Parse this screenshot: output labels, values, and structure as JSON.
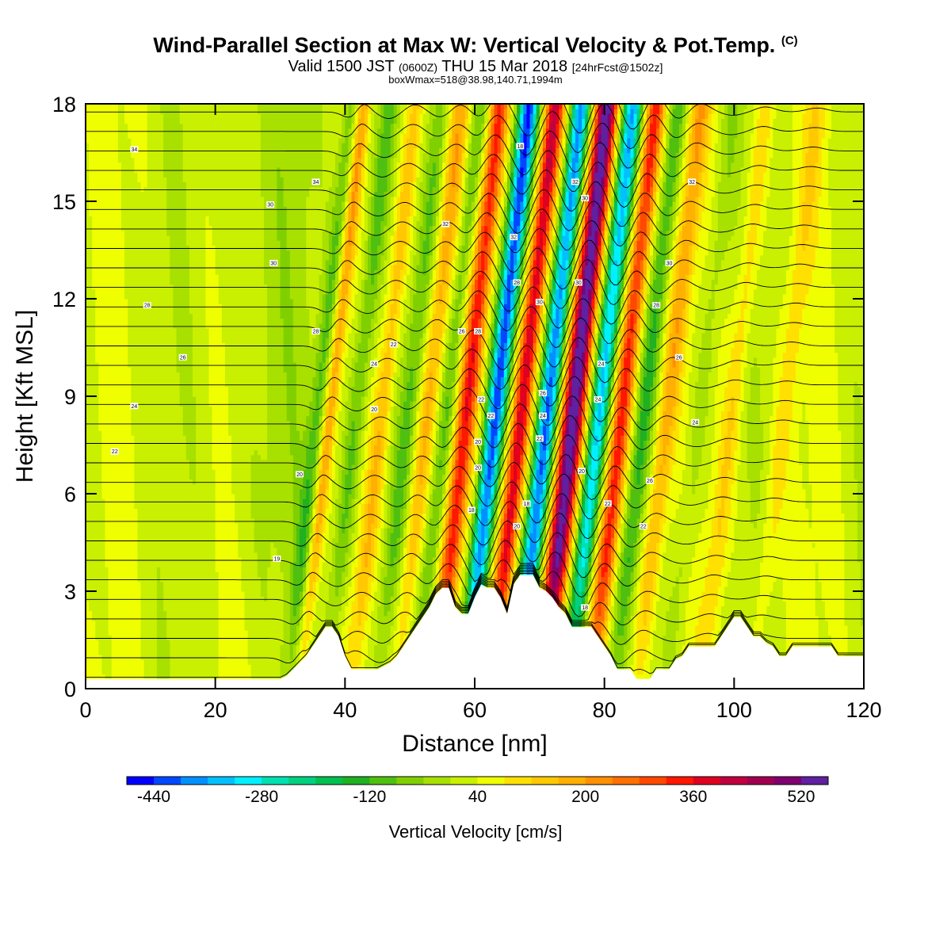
{
  "title": {
    "main": "Wind-Parallel Section at Max W: Vertical Velocity & Pot.Temp.",
    "copyright": "(C)",
    "valid_prefix": "Valid 1500 JST",
    "valid_utc": "(0600Z)",
    "valid_date": "THU 15 Mar 2018",
    "forecast": "[24hrFcst@1502z]",
    "box": "boxWmax=518@38.98,140.71,1994m"
  },
  "chart_data": {
    "type": "heatmap",
    "xlabel": "Distance [nm]",
    "ylabel": "Height [Kft MSL]",
    "xlim": [
      0,
      120
    ],
    "ylim": [
      0,
      18
    ],
    "x_ticks": [
      "0",
      "20",
      "40",
      "60",
      "80",
      "100",
      "120"
    ],
    "y_ticks": [
      "0",
      "3",
      "6",
      "9",
      "12",
      "15",
      "18"
    ],
    "colorbar": {
      "label": "Vertical Velocity [cm/s]",
      "tick_labels": [
        "-440",
        "-280",
        "-120",
        "40",
        "200",
        "360",
        "520"
      ],
      "levels": [
        -480,
        -440,
        -400,
        -360,
        -320,
        -280,
        -240,
        -200,
        -160,
        -120,
        -80,
        -40,
        0,
        40,
        80,
        120,
        160,
        200,
        240,
        280,
        320,
        360,
        400,
        440,
        480,
        520,
        560
      ],
      "colors": [
        "#0000ff",
        "#0048ff",
        "#0090ff",
        "#00c0ff",
        "#00f0ff",
        "#00e0b0",
        "#00d080",
        "#00c050",
        "#20b020",
        "#50c010",
        "#80d000",
        "#a8e000",
        "#c8f000",
        "#f0ff00",
        "#ffe000",
        "#ffc800",
        "#ffb000",
        "#ff9000",
        "#ff7000",
        "#ff4800",
        "#ff1800",
        "#e00020",
        "#c00040",
        "#a00050",
        "#800070",
        "#6020a0"
      ]
    },
    "vertical_velocity_bands": [
      {
        "x": 36,
        "w": 1.2,
        "amp": -110
      },
      {
        "x": 38,
        "w": 1.0,
        "amp": 160
      },
      {
        "x": 42,
        "w": 1.4,
        "amp": -120
      },
      {
        "x": 46,
        "w": 1.4,
        "amp": 130
      },
      {
        "x": 50,
        "w": 1.4,
        "amp": -100
      },
      {
        "x": 53,
        "w": 1.4,
        "amp": 140
      },
      {
        "x": 56,
        "w": 1.3,
        "amp": -120
      },
      {
        "x": 59,
        "w": 1.5,
        "amp": 300
      },
      {
        "x": 63.5,
        "w": 1.5,
        "amp": -440
      },
      {
        "x": 67.5,
        "w": 1.5,
        "amp": 380
      },
      {
        "x": 71.5,
        "w": 1.5,
        "amp": -420
      },
      {
        "x": 75.5,
        "w": 1.7,
        "amp": 518
      },
      {
        "x": 79.5,
        "w": 1.5,
        "amp": -360
      },
      {
        "x": 83,
        "w": 1.5,
        "amp": 320
      },
      {
        "x": 86.5,
        "w": 1.4,
        "amp": -140
      },
      {
        "x": 90,
        "w": 1.5,
        "amp": 150
      },
      {
        "x": 95,
        "w": 1.6,
        "amp": -60
      },
      {
        "x": 100,
        "w": 1.5,
        "amp": 90
      },
      {
        "x": 108,
        "w": 1.6,
        "amp": 70
      }
    ],
    "terrain": {
      "distance_nm": [
        0,
        30,
        31,
        32,
        33,
        34,
        35,
        36,
        37,
        38,
        39,
        40,
        41,
        42,
        45,
        47,
        48,
        49,
        50,
        51,
        52,
        53,
        54,
        55,
        56,
        57,
        58,
        59,
        60,
        61,
        62,
        63,
        64,
        65,
        66,
        67,
        68,
        69,
        70,
        71,
        72,
        73,
        74,
        75,
        76,
        77,
        78,
        79,
        80,
        81,
        82,
        83,
        84,
        85,
        86,
        87,
        88,
        89,
        90,
        91,
        92,
        93,
        95,
        97,
        98,
        99,
        100,
        101,
        102,
        103,
        104,
        105,
        106,
        107,
        108,
        109,
        110,
        115,
        116,
        117,
        118,
        119,
        120
      ],
      "height_kft": [
        0.3,
        0.3,
        0.4,
        0.6,
        0.8,
        1.0,
        1.3,
        1.6,
        1.9,
        1.9,
        1.6,
        1.0,
        0.6,
        0.6,
        0.6,
        0.8,
        1.0,
        1.3,
        1.6,
        1.9,
        2.2,
        2.5,
        2.9,
        3.1,
        3.1,
        2.5,
        2.3,
        2.3,
        2.8,
        3.2,
        3.1,
        3.1,
        2.8,
        2.3,
        3.2,
        3.5,
        3.5,
        3.5,
        3.1,
        3.0,
        2.8,
        2.5,
        2.3,
        1.9,
        1.9,
        1.9,
        1.9,
        1.6,
        1.3,
        1.0,
        0.6,
        0.6,
        0.6,
        0.3,
        0.3,
        0.3,
        0.6,
        0.6,
        0.6,
        0.9,
        1.0,
        1.3,
        1.3,
        1.3,
        1.6,
        1.9,
        2.2,
        2.2,
        1.9,
        1.6,
        1.6,
        1.4,
        1.3,
        1.0,
        1.0,
        1.3,
        1.3,
        1.3,
        1.0,
        1.0,
        1.0,
        1.0,
        1.0
      ]
    },
    "pot_temp_contours": {
      "count": 30,
      "labels": [
        {
          "text": "34",
          "x": 7.5,
          "y": 16.6
        },
        {
          "text": "34",
          "x": 35.5,
          "y": 15.6
        },
        {
          "text": "32",
          "x": 55.5,
          "y": 14.3
        },
        {
          "text": "32",
          "x": 93.5,
          "y": 15.6
        },
        {
          "text": "30",
          "x": 28.5,
          "y": 14.9
        },
        {
          "text": "30",
          "x": 29,
          "y": 13.1
        },
        {
          "text": "30",
          "x": 90,
          "y": 13.1
        },
        {
          "text": "28",
          "x": 9.5,
          "y": 11.8
        },
        {
          "text": "28",
          "x": 35.5,
          "y": 11.0
        },
        {
          "text": "28",
          "x": 88,
          "y": 11.8
        },
        {
          "text": "26",
          "x": 15,
          "y": 10.2
        },
        {
          "text": "24",
          "x": 7.5,
          "y": 8.7
        },
        {
          "text": "24",
          "x": 94,
          "y": 8.2
        },
        {
          "text": "22",
          "x": 4.5,
          "y": 7.3
        },
        {
          "text": "22",
          "x": 47.5,
          "y": 10.6
        },
        {
          "text": "20",
          "x": 33,
          "y": 6.6
        },
        {
          "text": "19",
          "x": 29.5,
          "y": 4.0
        },
        {
          "text": "26",
          "x": 91.5,
          "y": 10.2
        },
        {
          "text": "26",
          "x": 87,
          "y": 6.4
        },
        {
          "text": "22",
          "x": 86,
          "y": 5.0
        },
        {
          "text": "22",
          "x": 80.5,
          "y": 5.7
        },
        {
          "text": "20",
          "x": 76.5,
          "y": 6.7
        },
        {
          "text": "18",
          "x": 77,
          "y": 2.5
        },
        {
          "text": "24",
          "x": 79,
          "y": 8.9
        },
        {
          "text": "24",
          "x": 79.5,
          "y": 10.0
        },
        {
          "text": "30",
          "x": 77,
          "y": 15.1
        },
        {
          "text": "32",
          "x": 75.5,
          "y": 15.6
        },
        {
          "text": "30",
          "x": 76,
          "y": 12.5
        },
        {
          "text": "30",
          "x": 70,
          "y": 11.9
        },
        {
          "text": "28",
          "x": 66.5,
          "y": 12.5
        },
        {
          "text": "32",
          "x": 66,
          "y": 13.9
        },
        {
          "text": "18",
          "x": 67,
          "y": 16.7
        },
        {
          "text": "26",
          "x": 70.5,
          "y": 9.1
        },
        {
          "text": "24",
          "x": 70.5,
          "y": 8.4
        },
        {
          "text": "22",
          "x": 70,
          "y": 7.7
        },
        {
          "text": "18",
          "x": 68,
          "y": 5.7
        },
        {
          "text": "20",
          "x": 66.5,
          "y": 5.0
        },
        {
          "text": "28",
          "x": 60.5,
          "y": 11.0
        },
        {
          "text": "26",
          "x": 58,
          "y": 11.0
        },
        {
          "text": "22",
          "x": 61,
          "y": 8.9
        },
        {
          "text": "22",
          "x": 62.5,
          "y": 8.4
        },
        {
          "text": "20",
          "x": 60.5,
          "y": 7.6
        },
        {
          "text": "20",
          "x": 60.5,
          "y": 6.8
        },
        {
          "text": "18",
          "x": 59.5,
          "y": 5.5
        },
        {
          "text": "24",
          "x": 44.5,
          "y": 10.0
        },
        {
          "text": "20",
          "x": 44.5,
          "y": 8.6
        }
      ]
    }
  }
}
